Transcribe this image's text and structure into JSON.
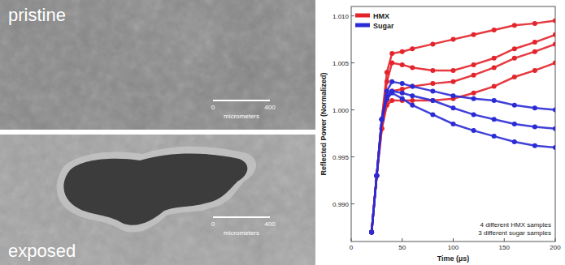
{
  "images": [
    {
      "label": "pristine",
      "scale_bar": {
        "start": "0",
        "end": "400",
        "unit": "micrometers"
      }
    },
    {
      "label": "exposed",
      "scale_bar": {
        "start": "0",
        "end": "400",
        "unit": "micrometers"
      }
    }
  ],
  "chart_data": {
    "type": "line",
    "x_label": "Time (µs)",
    "y_label": "Reflected Power (Normalized)",
    "x": [
      20,
      25,
      30,
      35,
      40,
      50,
      60,
      80,
      100,
      120,
      140,
      160,
      180,
      200
    ],
    "series": [
      {
        "name": "HMX",
        "color": "#e3242b",
        "marker": "circle",
        "values": [
          0.987,
          0.993,
          0.999,
          1.004,
          1.006,
          1.0062,
          1.0065,
          1.007,
          1.0075,
          1.008,
          1.0085,
          1.009,
          1.0092,
          1.0095
        ]
      },
      {
        "name": "HMX",
        "color": "#e3242b",
        "marker": "circle",
        "values": [
          0.987,
          0.993,
          0.999,
          1.003,
          1.005,
          1.0048,
          1.0045,
          1.0042,
          1.0042,
          1.0048,
          1.0055,
          1.0065,
          1.0072,
          1.008
        ]
      },
      {
        "name": "HMX",
        "color": "#e3242b",
        "marker": "circle",
        "values": [
          0.987,
          0.993,
          0.998,
          1.001,
          1.002,
          1.0022,
          1.0025,
          1.0028,
          1.003,
          1.0037,
          1.0045,
          1.0055,
          1.0062,
          1.007
        ]
      },
      {
        "name": "HMX",
        "color": "#e3242b",
        "marker": "circle",
        "values": [
          0.987,
          0.993,
          0.998,
          1.0005,
          1.001,
          1.001,
          1.001,
          1.001,
          1.0012,
          1.0018,
          1.0025,
          1.0035,
          1.0042,
          1.005
        ]
      },
      {
        "name": "Sugar",
        "color": "#2b2bd6",
        "marker": "circle",
        "values": [
          0.987,
          0.993,
          0.999,
          1.002,
          1.003,
          1.0028,
          1.0025,
          1.002,
          1.0015,
          1.0012,
          1.001,
          1.0005,
          1.0002,
          1.0
        ]
      },
      {
        "name": "Sugar",
        "color": "#2b2bd6",
        "marker": "circle",
        "values": [
          0.987,
          0.993,
          0.999,
          1.0015,
          1.002,
          1.0018,
          1.0015,
          1.001,
          1.0002,
          0.9995,
          0.999,
          0.9985,
          0.9982,
          0.998
        ]
      },
      {
        "name": "Sugar",
        "color": "#2b2bd6",
        "marker": "circle",
        "values": [
          0.987,
          0.993,
          0.999,
          1.0012,
          1.0018,
          1.0012,
          1.0005,
          0.9995,
          0.9985,
          0.9978,
          0.9972,
          0.9966,
          0.9962,
          0.996
        ]
      }
    ],
    "xlim": [
      0,
      200
    ],
    "xticks": [
      0,
      50,
      100,
      150,
      200
    ],
    "ylim": [
      0.986,
      1.011
    ],
    "yticks": [
      {
        "value": 0.99,
        "label": "0.990"
      },
      {
        "value": 0.995,
        "label": "0.995"
      },
      {
        "value": 1,
        "label": "1.000"
      },
      1.005,
      {
        "value": 1.01,
        "label": "1.010"
      }
    ],
    "legend": "upper left",
    "annotations": [
      "4 different HMX samples",
      "3 different sugar samples"
    ]
  }
}
